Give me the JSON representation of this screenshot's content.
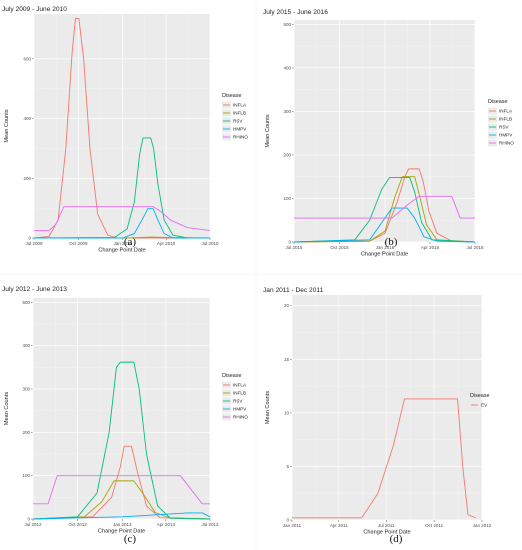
{
  "colors": {
    "INFLA": "#F8766D",
    "INFLB": "#A3A500",
    "RSV": "#00BF7D",
    "HMPV": "#00B0F6",
    "RHINO": "#E76BF3",
    "EV": "#F8766D",
    "panel_bg": "#EBEBEB",
    "grid": "#FFFFFF"
  },
  "chart_data": [
    {
      "type": "line",
      "panel_label": "(a)",
      "title": "July 2009 - June 2010",
      "xlabel": "Change Point Date",
      "ylabel": "Mean Counts",
      "xlim": [
        "2009-07-01",
        "2010-07-01"
      ],
      "ylim": [
        0,
        750
      ],
      "xticks": [
        {
          "x": "2009-07-01",
          "label": "Jul 2009"
        },
        {
          "x": "2009-10-01",
          "label": "Oct 2009"
        },
        {
          "x": "2010-01-01",
          "label": "Jan 2010"
        },
        {
          "x": "2010-04-01",
          "label": "Apr 2010"
        },
        {
          "x": "2010-07-01",
          "label": "Jul 2010"
        }
      ],
      "yticks": [
        0,
        200,
        400,
        600
      ],
      "legend": {
        "title": "Disease",
        "position": "right",
        "entries": [
          "INFLA",
          "INFLB",
          "RSV",
          "HMPV",
          "RHINO"
        ]
      },
      "series": [
        {
          "name": "INFLA",
          "points": [
            [
              "2009-07-01",
              0
            ],
            [
              "2009-08-01",
              5
            ],
            [
              "2009-08-20",
              60
            ],
            [
              "2009-09-05",
              300
            ],
            [
              "2009-09-18",
              620
            ],
            [
              "2009-09-25",
              735
            ],
            [
              "2009-10-02",
              735
            ],
            [
              "2009-10-12",
              600
            ],
            [
              "2009-10-25",
              300
            ],
            [
              "2009-11-10",
              80
            ],
            [
              "2009-12-01",
              10
            ],
            [
              "2009-12-20",
              0
            ],
            [
              "2010-07-01",
              0
            ]
          ]
        },
        {
          "name": "INFLB",
          "points": [
            [
              "2009-07-01",
              0
            ],
            [
              "2010-01-15",
              0
            ],
            [
              "2010-03-01",
              3
            ],
            [
              "2010-04-01",
              2
            ],
            [
              "2010-07-01",
              0
            ]
          ]
        },
        {
          "name": "RSV",
          "points": [
            [
              "2009-07-01",
              0
            ],
            [
              "2009-12-15",
              2
            ],
            [
              "2010-01-10",
              30
            ],
            [
              "2010-01-25",
              120
            ],
            [
              "2010-02-05",
              280
            ],
            [
              "2010-02-12",
              335
            ],
            [
              "2010-02-28",
              335
            ],
            [
              "2010-03-06",
              300
            ],
            [
              "2010-03-15",
              180
            ],
            [
              "2010-03-28",
              60
            ],
            [
              "2010-04-15",
              10
            ],
            [
              "2010-05-15",
              0
            ],
            [
              "2010-07-01",
              0
            ]
          ]
        },
        {
          "name": "HMPV",
          "points": [
            [
              "2009-07-01",
              0
            ],
            [
              "2010-01-01",
              0
            ],
            [
              "2010-01-25",
              15
            ],
            [
              "2010-02-10",
              60
            ],
            [
              "2010-02-22",
              98
            ],
            [
              "2010-03-05",
              98
            ],
            [
              "2010-03-15",
              60
            ],
            [
              "2010-03-28",
              15
            ],
            [
              "2010-04-15",
              0
            ],
            [
              "2010-07-01",
              0
            ]
          ]
        },
        {
          "name": "RHINO",
          "points": [
            [
              "2009-07-01",
              25
            ],
            [
              "2009-08-01",
              25
            ],
            [
              "2009-08-15",
              45
            ],
            [
              "2009-09-01",
              105
            ],
            [
              "2010-03-05",
              105
            ],
            [
              "2010-03-20",
              90
            ],
            [
              "2010-04-10",
              60
            ],
            [
              "2010-05-15",
              35
            ],
            [
              "2010-07-01",
              25
            ]
          ]
        }
      ]
    },
    {
      "type": "line",
      "panel_label": "(b)",
      "title": "July 2015 - June 2016",
      "xlabel": "Change Point Date",
      "ylabel": "Mean Counts",
      "xlim": [
        "2015-07-01",
        "2016-07-01"
      ],
      "ylim": [
        0,
        510
      ],
      "xticks": [
        {
          "x": "2015-07-01",
          "label": "Jul 2015"
        },
        {
          "x": "2015-10-01",
          "label": "Oct 2015"
        },
        {
          "x": "2016-01-01",
          "label": "Jan 2016"
        },
        {
          "x": "2016-04-01",
          "label": "Apr 2016"
        },
        {
          "x": "2016-07-01",
          "label": "Jul 2016"
        }
      ],
      "yticks": [
        0,
        100,
        200,
        300,
        400,
        500
      ],
      "legend": {
        "title": "Disease",
        "position": "right",
        "entries": [
          "INFLA",
          "INFLB",
          "RSV",
          "HMPV",
          "RHINO"
        ]
      },
      "series": [
        {
          "name": "INFLA",
          "points": [
            [
              "2015-07-01",
              0
            ],
            [
              "2015-12-01",
              2
            ],
            [
              "2016-01-01",
              20
            ],
            [
              "2016-01-25",
              90
            ],
            [
              "2016-02-10",
              150
            ],
            [
              "2016-02-18",
              168
            ],
            [
              "2016-03-10",
              168
            ],
            [
              "2016-03-18",
              140
            ],
            [
              "2016-03-30",
              70
            ],
            [
              "2016-04-15",
              20
            ],
            [
              "2016-05-15",
              2
            ],
            [
              "2016-07-01",
              0
            ]
          ]
        },
        {
          "name": "INFLB",
          "points": [
            [
              "2015-07-01",
              0
            ],
            [
              "2015-12-01",
              2
            ],
            [
              "2016-01-01",
              25
            ],
            [
              "2016-01-20",
              100
            ],
            [
              "2016-02-05",
              150
            ],
            [
              "2016-03-01",
              150
            ],
            [
              "2016-03-10",
              110
            ],
            [
              "2016-03-25",
              40
            ],
            [
              "2016-04-15",
              5
            ],
            [
              "2016-07-01",
              0
            ]
          ]
        },
        {
          "name": "RSV",
          "points": [
            [
              "2015-07-01",
              0
            ],
            [
              "2015-11-01",
              5
            ],
            [
              "2015-12-01",
              50
            ],
            [
              "2015-12-25",
              120
            ],
            [
              "2016-01-10",
              148
            ],
            [
              "2016-02-20",
              148
            ],
            [
              "2016-03-01",
              115
            ],
            [
              "2016-03-15",
              45
            ],
            [
              "2016-04-05",
              5
            ],
            [
              "2016-07-01",
              0
            ]
          ]
        },
        {
          "name": "HMPV",
          "points": [
            [
              "2015-07-01",
              0
            ],
            [
              "2015-12-01",
              5
            ],
            [
              "2016-01-01",
              55
            ],
            [
              "2016-01-15",
              78
            ],
            [
              "2016-02-15",
              78
            ],
            [
              "2016-03-01",
              55
            ],
            [
              "2016-03-20",
              12
            ],
            [
              "2016-04-15",
              2
            ],
            [
              "2016-07-01",
              0
            ]
          ]
        },
        {
          "name": "RHINO",
          "points": [
            [
              "2015-07-01",
              55
            ],
            [
              "2016-01-15",
              55
            ],
            [
              "2016-02-15",
              85
            ],
            [
              "2016-03-10",
              105
            ],
            [
              "2016-05-15",
              105
            ],
            [
              "2016-06-01",
              55
            ],
            [
              "2016-07-01",
              55
            ]
          ]
        }
      ]
    },
    {
      "type": "line",
      "panel_label": "(c)",
      "title": "July 2012 - June 2013",
      "xlabel": "Change Point Date",
      "ylabel": "Mean Counts",
      "xlim": [
        "2012-07-01",
        "2013-07-01"
      ],
      "ylim": [
        0,
        510
      ],
      "xticks": [
        {
          "x": "2012-07-01",
          "label": "Jul 2012"
        },
        {
          "x": "2012-10-01",
          "label": "Oct 2012"
        },
        {
          "x": "2013-01-01",
          "label": "Jan 2013"
        },
        {
          "x": "2013-04-01",
          "label": "Apr 2013"
        },
        {
          "x": "2013-07-01",
          "label": "Jul 2013"
        }
      ],
      "yticks": [
        0,
        100,
        200,
        300,
        400,
        500
      ],
      "legend": {
        "title": "Disease",
        "position": "right",
        "entries": [
          "INFLA",
          "INFLB",
          "RSV",
          "HMPV",
          "RHINO"
        ]
      },
      "series": [
        {
          "name": "INFLA",
          "points": [
            [
              "2012-07-01",
              0
            ],
            [
              "2012-11-01",
              5
            ],
            [
              "2012-12-10",
              50
            ],
            [
              "2012-12-28",
              120
            ],
            [
              "2013-01-05",
              168
            ],
            [
              "2013-01-20",
              168
            ],
            [
              "2013-02-01",
              110
            ],
            [
              "2013-02-20",
              30
            ],
            [
              "2013-03-20",
              3
            ],
            [
              "2013-07-01",
              0
            ]
          ]
        },
        {
          "name": "INFLB",
          "points": [
            [
              "2012-07-01",
              0
            ],
            [
              "2012-10-15",
              5
            ],
            [
              "2012-11-20",
              40
            ],
            [
              "2012-12-15",
              88
            ],
            [
              "2013-01-25",
              88
            ],
            [
              "2013-02-15",
              55
            ],
            [
              "2013-03-10",
              15
            ],
            [
              "2013-04-10",
              2
            ],
            [
              "2013-07-01",
              0
            ]
          ]
        },
        {
          "name": "RSV",
          "points": [
            [
              "2012-07-01",
              0
            ],
            [
              "2012-10-01",
              5
            ],
            [
              "2012-11-10",
              60
            ],
            [
              "2012-12-05",
              200
            ],
            [
              "2012-12-20",
              350
            ],
            [
              "2012-12-28",
              362
            ],
            [
              "2013-01-25",
              362
            ],
            [
              "2013-02-05",
              300
            ],
            [
              "2013-02-20",
              150
            ],
            [
              "2013-03-15",
              30
            ],
            [
              "2013-04-10",
              2
            ],
            [
              "2013-07-01",
              0
            ]
          ]
        },
        {
          "name": "HMPV",
          "points": [
            [
              "2012-07-01",
              0
            ],
            [
              "2013-01-01",
              5
            ],
            [
              "2013-05-15",
              14
            ],
            [
              "2013-06-15",
              14
            ],
            [
              "2013-07-01",
              5
            ]
          ]
        },
        {
          "name": "RHINO",
          "points": [
            [
              "2012-07-01",
              35
            ],
            [
              "2012-08-01",
              35
            ],
            [
              "2012-08-20",
              100
            ],
            [
              "2013-05-01",
              100
            ],
            [
              "2013-06-15",
              35
            ],
            [
              "2013-07-01",
              35
            ]
          ]
        }
      ]
    },
    {
      "type": "line",
      "panel_label": "(d)",
      "title": "Jan 2011 - Dec 2011",
      "xlabel": "Change Point Date",
      "ylabel": "Mean Counts",
      "xlim": [
        "2011-01-01",
        "2012-01-01"
      ],
      "ylim": [
        0,
        21
      ],
      "xticks": [
        {
          "x": "2011-01-01",
          "label": "Jan 2011"
        },
        {
          "x": "2011-04-01",
          "label": "Apr 2011"
        },
        {
          "x": "2011-07-01",
          "label": "Jul 2011"
        },
        {
          "x": "2011-10-01",
          "label": "Oct 2011"
        },
        {
          "x": "2012-01-01",
          "label": "Jan 2012"
        }
      ],
      "yticks": [
        0,
        5,
        10,
        15,
        20
      ],
      "legend": {
        "title": "Disease",
        "position": "right",
        "entries": [
          "EV"
        ]
      },
      "series": [
        {
          "name": "EV",
          "points": [
            [
              "2011-01-01",
              0.2
            ],
            [
              "2011-05-15",
              0.2
            ],
            [
              "2011-06-15",
              2.5
            ],
            [
              "2011-07-15",
              7
            ],
            [
              "2011-08-05",
              11.3
            ],
            [
              "2011-11-15",
              11.3
            ],
            [
              "2011-11-25",
              5
            ],
            [
              "2011-12-05",
              0.5
            ],
            [
              "2011-12-20",
              0.2
            ]
          ]
        }
      ]
    }
  ]
}
